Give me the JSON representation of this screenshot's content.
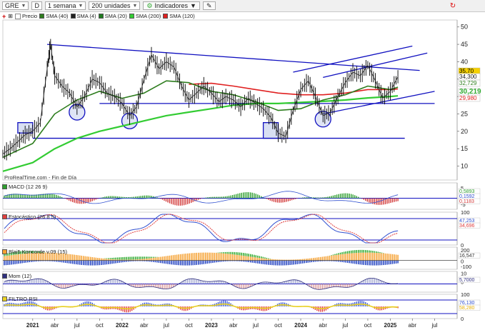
{
  "toolbar": {
    "ticker": "GRE",
    "period_code": "D",
    "timeframe": "1 semana",
    "units": "200 unidades",
    "indicators_label": "Indicadores"
  },
  "legend": {
    "price": "Precio",
    "sma40": "SMA (40)",
    "sma4": "SMA (4)",
    "sma20": "SMA (20)",
    "sma200": "SMA (200)",
    "sma120": "SMA (120)"
  },
  "credit": "ProRealTime.com - Fin de Día",
  "panels": {
    "macd": "MACD (12 26 9)",
    "estocastico": "Estocástico (26 8 5)",
    "blai": "Blai5 Koncorde v.09 (15)",
    "mom": "Mom (12)",
    "rsi": "FILTRO RSI"
  },
  "colors": {
    "price": "#000000",
    "sma40": "#2e7d1e",
    "sma4": "#202020",
    "sma20": "#1f7a1f",
    "sma200": "#33cc33",
    "sma120": "#e02020",
    "trendline": "#1010c0",
    "macd_pos": "#2e9e2e",
    "macd_neg": "#d23a3a",
    "stoch_k": "#3050d0",
    "stoch_d": "#e04040",
    "koncorde_orange": "#f5a030",
    "koncorde_green": "#2eaa2e",
    "koncorde_blue": "#2040c0",
    "mom_line": "#303080",
    "rsi_yellow": "#e8d020",
    "rsi_blue": "#3050d0",
    "rsi_red": "#e03030"
  },
  "chart_data": {
    "type": "line",
    "x_ticks": [
      "2021",
      "abr",
      "jul",
      "oct",
      "2022",
      "abr",
      "jul",
      "oct",
      "2023",
      "abr",
      "jul",
      "oct",
      "2024",
      "abr",
      "jul",
      "oct",
      "2025",
      "abr",
      "jul"
    ],
    "y_ticks": [
      10,
      15,
      20,
      25,
      30,
      35,
      40,
      45,
      50
    ],
    "ylim": [
      6,
      52
    ],
    "price_labels": [
      {
        "value": "35,70",
        "color": "#f5d000"
      },
      {
        "value": "34,300",
        "color": "#ffffff"
      },
      {
        "value": "32,729",
        "color": "#ffffff"
      },
      {
        "value": "30,219",
        "color": "#ffffff"
      },
      {
        "value": "29,980",
        "color": "#ffffff"
      }
    ],
    "price": [
      [
        "2020-09",
        13.5
      ],
      [
        "2020-10",
        15.0
      ],
      [
        "2020-11",
        17.0
      ],
      [
        "2020-12",
        19.0
      ],
      [
        "2021-01",
        20.0
      ],
      [
        "2021-02",
        22.5
      ],
      [
        "2021-03",
        38.0
      ],
      [
        "2021-03-15",
        45.0
      ],
      [
        "2021-04",
        36.0
      ],
      [
        "2021-05",
        33.0
      ],
      [
        "2021-06",
        31.0
      ],
      [
        "2021-07",
        27.0
      ],
      [
        "2021-08",
        30.0
      ],
      [
        "2021-09",
        35.0
      ],
      [
        "2021-10",
        34.0
      ],
      [
        "2021-11",
        31.0
      ],
      [
        "2021-12",
        30.0
      ],
      [
        "2022-01",
        28.0
      ],
      [
        "2022-02",
        24.5
      ],
      [
        "2022-03",
        27.0
      ],
      [
        "2022-04",
        35.0
      ],
      [
        "2022-05",
        42.0
      ],
      [
        "2022-06",
        38.0
      ],
      [
        "2022-07",
        40.0
      ],
      [
        "2022-08",
        38.5
      ],
      [
        "2022-09",
        33.0
      ],
      [
        "2022-10",
        29.0
      ],
      [
        "2022-11",
        31.0
      ],
      [
        "2022-12",
        33.0
      ],
      [
        "2023-01",
        31.0
      ],
      [
        "2023-02",
        28.5
      ],
      [
        "2023-03",
        30.0
      ],
      [
        "2023-04",
        29.0
      ],
      [
        "2023-05",
        27.0
      ],
      [
        "2023-06",
        29.5
      ],
      [
        "2023-07",
        28.0
      ],
      [
        "2023-08",
        26.5
      ],
      [
        "2023-09",
        24.0
      ],
      [
        "2023-10",
        19.5
      ],
      [
        "2023-11",
        18.5
      ],
      [
        "2023-12",
        26.0
      ],
      [
        "2024-01",
        32.0
      ],
      [
        "2024-02",
        34.5
      ],
      [
        "2024-03",
        30.0
      ],
      [
        "2024-04",
        24.5
      ],
      [
        "2024-05",
        25.5
      ],
      [
        "2024-06",
        30.0
      ],
      [
        "2024-07",
        34.0
      ],
      [
        "2024-08",
        37.0
      ],
      [
        "2024-09",
        36.0
      ],
      [
        "2024-10",
        39.0
      ],
      [
        "2024-11",
        34.5
      ],
      [
        "2024-12",
        29.5
      ],
      [
        "2025-01",
        31.5
      ],
      [
        "2025-02",
        35.7
      ]
    ],
    "sma40": [
      [
        "2020-09",
        12.5
      ],
      [
        "2021-01",
        16.5
      ],
      [
        "2021-04",
        25.0
      ],
      [
        "2021-07",
        29.0
      ],
      [
        "2021-10",
        31.5
      ],
      [
        "2022-01",
        29.5
      ],
      [
        "2022-04",
        31.0
      ],
      [
        "2022-07",
        34.5
      ],
      [
        "2022-10",
        34.0
      ],
      [
        "2023-01",
        31.5
      ],
      [
        "2023-04",
        30.5
      ],
      [
        "2023-07",
        28.5
      ],
      [
        "2023-10",
        26.0
      ],
      [
        "2024-01",
        26.5
      ],
      [
        "2024-04",
        29.0
      ],
      [
        "2024-07",
        30.5
      ],
      [
        "2024-10",
        33.0
      ],
      [
        "2025-01",
        32.0
      ],
      [
        "2025-02",
        32.7
      ]
    ],
    "sma200": [
      [
        "2020-09",
        8.5
      ],
      [
        "2021-01",
        11.0
      ],
      [
        "2021-04",
        15.0
      ],
      [
        "2021-07",
        18.0
      ],
      [
        "2021-10",
        20.0
      ],
      [
        "2022-01",
        21.5
      ],
      [
        "2022-04",
        23.0
      ],
      [
        "2022-07",
        24.5
      ],
      [
        "2022-10",
        25.5
      ],
      [
        "2023-01",
        26.5
      ],
      [
        "2023-04",
        27.5
      ],
      [
        "2023-07",
        28.0
      ],
      [
        "2023-10",
        28.0
      ],
      [
        "2024-01",
        28.3
      ],
      [
        "2024-04",
        28.6
      ],
      [
        "2024-07",
        29.0
      ],
      [
        "2024-10",
        29.6
      ],
      [
        "2025-01",
        30.0
      ],
      [
        "2025-02",
        30.2
      ]
    ],
    "sma120": [
      [
        "2022-10",
        33.5
      ],
      [
        "2023-01",
        33.8
      ],
      [
        "2023-04",
        33.0
      ],
      [
        "2023-07",
        32.0
      ],
      [
        "2023-10",
        31.0
      ],
      [
        "2024-01",
        30.5
      ],
      [
        "2024-04",
        30.5
      ],
      [
        "2024-07",
        31.0
      ],
      [
        "2024-10",
        32.0
      ],
      [
        "2025-01",
        32.0
      ],
      [
        "2025-02",
        32.2
      ]
    ],
    "trendlines": [
      {
        "from": [
          "2021-03",
          45.0
        ],
        "to": [
          "2025-05",
          37.5
        ]
      },
      {
        "from": [
          "2021-01",
          18.0
        ],
        "to": [
          "2025-03",
          18.0
        ]
      },
      {
        "from": [
          "2021-10",
          28.0
        ],
        "to": [
          "2025-07",
          28.0
        ]
      },
      {
        "from": [
          "2023-12",
          37.0
        ],
        "to": [
          "2025-04",
          44.5
        ]
      },
      {
        "from": [
          "2024-04",
          35.5
        ],
        "to": [
          "2025-06",
          42.5
        ]
      },
      {
        "from": [
          "2024-04",
          25.0
        ],
        "to": [
          "2025-07",
          31.5
        ]
      }
    ],
    "markers": [
      {
        "shape": "rect",
        "from": [
          "2020-11",
          22.5
        ],
        "to": [
          "2021-01",
          19.5
        ]
      },
      {
        "shape": "rect",
        "from": [
          "2023-08",
          22.5
        ],
        "to": [
          "2023-10",
          18.0
        ]
      },
      {
        "shape": "circle",
        "at": [
          "2021-07",
          25.5
        ]
      },
      {
        "shape": "circle",
        "at": [
          "2022-02",
          23.0
        ]
      },
      {
        "shape": "circle",
        "at": [
          "2024-04",
          23.5
        ]
      }
    ],
    "indicators": {
      "macd": {
        "ticks": [
          5,
          0,
          -5
        ],
        "labels": [
          "0,5893",
          "0,1592",
          "0,1183"
        ]
      },
      "estocastico": {
        "ticks": [
          100,
          0
        ],
        "labels": [
          "47,253",
          "34,696"
        ]
      },
      "koncorde": {
        "ticks": [
          200,
          100,
          0,
          -100
        ],
        "labels": [
          "16,547"
        ]
      },
      "mom": {
        "ticks": [
          10,
          0
        ],
        "labels": [
          "5,7000"
        ]
      },
      "rsi": {
        "ticks": [
          100,
          50,
          0
        ],
        "labels": [
          "76,130",
          "58,280"
        ]
      }
    }
  }
}
